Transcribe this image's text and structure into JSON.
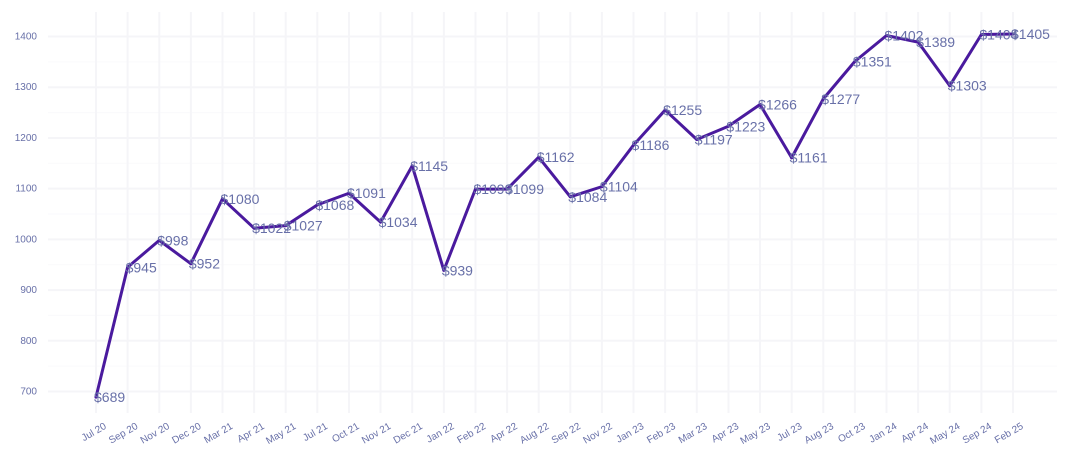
{
  "chart_data": {
    "type": "line",
    "title": "",
    "xlabel": "",
    "ylabel": "",
    "ylim": [
      650,
      1440
    ],
    "yticks": [
      700,
      800,
      900,
      1000,
      1100,
      1200,
      1300,
      1400
    ],
    "grid": true,
    "legend": "none",
    "colors": {
      "line": "#4a1a9e",
      "label": "#6870a8",
      "grid": "#f5f5f8"
    },
    "categories": [
      "Jul 20",
      "Sep 20",
      "Nov 20",
      "Dec 20",
      "Mar 21",
      "Apr 21",
      "May 21",
      "Jul 21",
      "Oct 21",
      "Nov 21",
      "Dec 21",
      "Jan 22",
      "Feb 22",
      "Apr 22",
      "Aug 22",
      "Sep 22",
      "Nov 22",
      "Jan 23",
      "Feb 23",
      "Mar 23",
      "Apr 23",
      "May 23",
      "Jul 23",
      "Aug 23",
      "Oct 23",
      "Jan 24",
      "Apr 24",
      "May 24",
      "Sep 24",
      "Feb 25"
    ],
    "values": [
      689,
      945,
      998,
      952,
      1080,
      1022,
      1027,
      1068,
      1091,
      1034,
      1145,
      939,
      1099,
      1099,
      1162,
      1084,
      1104,
      1186,
      1255,
      1197,
      1223,
      1266,
      1161,
      1277,
      1351,
      1402,
      1389,
      1303,
      1404,
      1405
    ],
    "data_labels": [
      "$689",
      "$945",
      "$998",
      "$952",
      "$1080",
      "$1022",
      "$1027",
      "$1068",
      "$1091",
      "$1034",
      "$1145",
      "$939",
      "$1099",
      "$1099",
      "$1162",
      "$1084",
      "$1104",
      "$1186",
      "$1255",
      "$1197",
      "$1223",
      "$1266",
      "$1161",
      "$1277",
      "$1351",
      "$1402",
      "$1389",
      "$1303",
      "$1404",
      "$1405"
    ]
  }
}
